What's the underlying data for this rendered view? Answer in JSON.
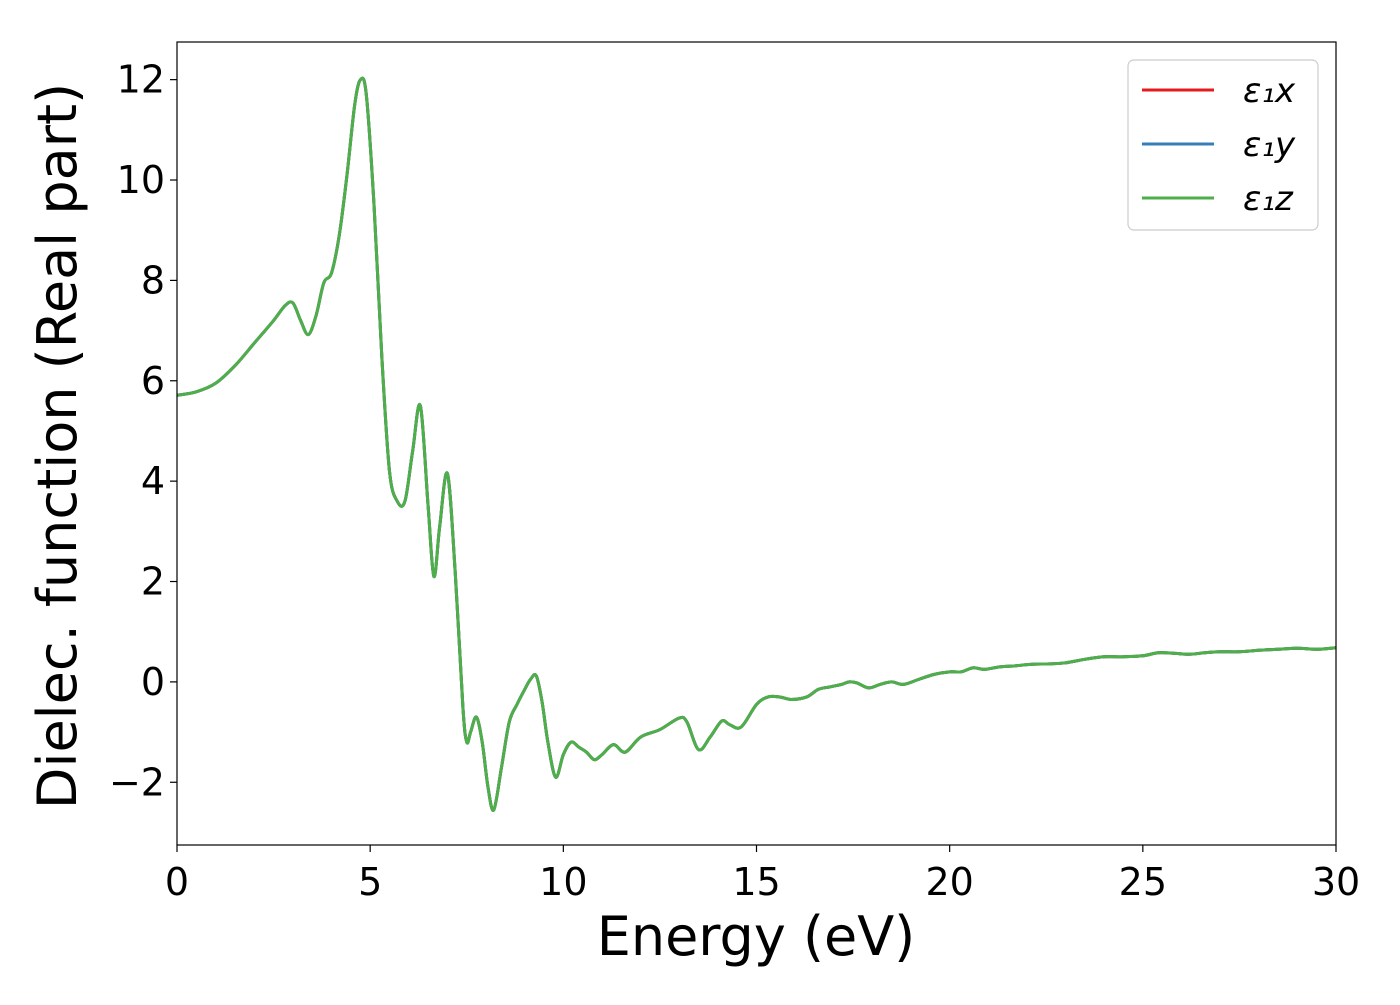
{
  "chart_data": {
    "type": "line",
    "xlabel": "Energy (eV)",
    "ylabel": "Dielec. function (Real part)",
    "xlim": [
      0,
      30
    ],
    "ylim": [
      -3.25,
      12.75
    ],
    "xticks": [
      0,
      5,
      10,
      15,
      20,
      25,
      30
    ],
    "xtick_labels": [
      "0",
      "5",
      "10",
      "15",
      "20",
      "25",
      "30"
    ],
    "yticks": [
      -2,
      0,
      2,
      4,
      6,
      8,
      10,
      12
    ],
    "ytick_labels": [
      "−2",
      "0",
      "2",
      "4",
      "6",
      "8",
      "10",
      "12"
    ],
    "grid": false,
    "legend_position": "top-right",
    "x": [
      0,
      0.5,
      1,
      1.5,
      2,
      2.5,
      2.8,
      3.0,
      3.2,
      3.4,
      3.6,
      3.8,
      4.0,
      4.2,
      4.4,
      4.6,
      4.75,
      4.9,
      5.1,
      5.3,
      5.5,
      5.7,
      5.9,
      6.1,
      6.3,
      6.5,
      6.65,
      6.8,
      7.0,
      7.2,
      7.4,
      7.5,
      7.6,
      7.75,
      7.9,
      8.05,
      8.2,
      8.4,
      8.6,
      8.8,
      9.0,
      9.15,
      9.3,
      9.45,
      9.6,
      9.8,
      10.0,
      10.2,
      10.4,
      10.6,
      10.8,
      11.0,
      11.3,
      11.6,
      12.0,
      12.5,
      13.0,
      13.2,
      13.5,
      13.8,
      14.1,
      14.3,
      14.6,
      15.0,
      15.3,
      15.6,
      15.9,
      16.3,
      16.6,
      16.9,
      17.2,
      17.4,
      17.6,
      17.9,
      18.2,
      18.5,
      18.8,
      19.2,
      19.6,
      20.0,
      20.3,
      20.6,
      20.9,
      21.3,
      21.7,
      22.1,
      22.6,
      23.0,
      23.5,
      24.0,
      24.5,
      25.0,
      25.4,
      25.8,
      26.2,
      26.6,
      27.0,
      27.5,
      28.0,
      28.5,
      29.0,
      29.5,
      30.0
    ],
    "series": [
      {
        "name": "ε₁x",
        "color": "#e41a1c",
        "values": [
          5.71,
          5.78,
          5.95,
          6.3,
          6.75,
          7.2,
          7.5,
          7.55,
          7.2,
          6.92,
          7.3,
          7.95,
          8.15,
          8.9,
          10.1,
          11.5,
          12.0,
          11.7,
          9.5,
          6.5,
          4.2,
          3.6,
          3.6,
          4.6,
          5.5,
          3.5,
          2.1,
          3.1,
          4.15,
          2.2,
          -0.5,
          -1.2,
          -1.0,
          -0.7,
          -1.2,
          -2.1,
          -2.55,
          -1.7,
          -0.8,
          -0.45,
          -0.15,
          0.05,
          0.12,
          -0.4,
          -1.2,
          -1.9,
          -1.45,
          -1.2,
          -1.3,
          -1.4,
          -1.55,
          -1.45,
          -1.25,
          -1.4,
          -1.1,
          -0.95,
          -0.72,
          -0.8,
          -1.35,
          -1.1,
          -0.78,
          -0.85,
          -0.9,
          -0.45,
          -0.3,
          -0.3,
          -0.35,
          -0.3,
          -0.15,
          -0.1,
          -0.05,
          0.0,
          -0.02,
          -0.12,
          -0.05,
          0.0,
          -0.05,
          0.05,
          0.15,
          0.2,
          0.2,
          0.28,
          0.25,
          0.3,
          0.32,
          0.35,
          0.36,
          0.38,
          0.45,
          0.5,
          0.5,
          0.52,
          0.58,
          0.57,
          0.55,
          0.58,
          0.6,
          0.6,
          0.63,
          0.65,
          0.67,
          0.65,
          0.68
        ]
      },
      {
        "name": "ε₁y",
        "color": "#377eb8",
        "values": [
          5.71,
          5.78,
          5.95,
          6.3,
          6.75,
          7.2,
          7.5,
          7.55,
          7.2,
          6.92,
          7.3,
          7.95,
          8.15,
          8.9,
          10.1,
          11.5,
          12.0,
          11.7,
          9.5,
          6.5,
          4.2,
          3.6,
          3.6,
          4.6,
          5.5,
          3.5,
          2.1,
          3.1,
          4.15,
          2.2,
          -0.5,
          -1.2,
          -1.0,
          -0.7,
          -1.2,
          -2.1,
          -2.55,
          -1.7,
          -0.8,
          -0.45,
          -0.15,
          0.05,
          0.12,
          -0.4,
          -1.2,
          -1.9,
          -1.45,
          -1.2,
          -1.3,
          -1.4,
          -1.55,
          -1.45,
          -1.25,
          -1.4,
          -1.1,
          -0.95,
          -0.72,
          -0.8,
          -1.35,
          -1.1,
          -0.78,
          -0.85,
          -0.9,
          -0.45,
          -0.3,
          -0.3,
          -0.35,
          -0.3,
          -0.15,
          -0.1,
          -0.05,
          0.0,
          -0.02,
          -0.12,
          -0.05,
          0.0,
          -0.05,
          0.05,
          0.15,
          0.2,
          0.2,
          0.28,
          0.25,
          0.3,
          0.32,
          0.35,
          0.36,
          0.38,
          0.45,
          0.5,
          0.5,
          0.52,
          0.58,
          0.57,
          0.55,
          0.58,
          0.6,
          0.6,
          0.63,
          0.65,
          0.67,
          0.65,
          0.68
        ]
      },
      {
        "name": "ε₁z",
        "color": "#4daf4a",
        "values": [
          5.71,
          5.78,
          5.95,
          6.3,
          6.75,
          7.2,
          7.5,
          7.55,
          7.2,
          6.92,
          7.3,
          7.95,
          8.15,
          8.9,
          10.1,
          11.5,
          12.0,
          11.7,
          9.5,
          6.5,
          4.2,
          3.6,
          3.6,
          4.6,
          5.5,
          3.5,
          2.1,
          3.1,
          4.15,
          2.2,
          -0.5,
          -1.2,
          -1.0,
          -0.7,
          -1.2,
          -2.1,
          -2.55,
          -1.7,
          -0.8,
          -0.45,
          -0.15,
          0.05,
          0.12,
          -0.4,
          -1.2,
          -1.9,
          -1.45,
          -1.2,
          -1.3,
          -1.4,
          -1.55,
          -1.45,
          -1.25,
          -1.4,
          -1.1,
          -0.95,
          -0.72,
          -0.8,
          -1.35,
          -1.1,
          -0.78,
          -0.85,
          -0.9,
          -0.45,
          -0.3,
          -0.3,
          -0.35,
          -0.3,
          -0.15,
          -0.1,
          -0.05,
          0.0,
          -0.02,
          -0.12,
          -0.05,
          0.0,
          -0.05,
          0.05,
          0.15,
          0.2,
          0.2,
          0.28,
          0.25,
          0.3,
          0.32,
          0.35,
          0.36,
          0.38,
          0.45,
          0.5,
          0.5,
          0.52,
          0.58,
          0.57,
          0.55,
          0.58,
          0.6,
          0.6,
          0.63,
          0.65,
          0.67,
          0.65,
          0.68
        ]
      }
    ]
  }
}
